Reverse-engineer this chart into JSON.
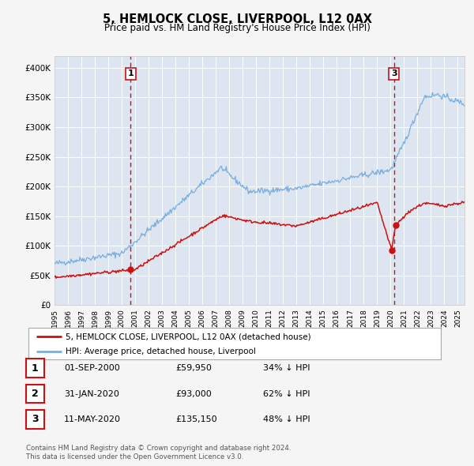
{
  "title": "5, HEMLOCK CLOSE, LIVERPOOL, L12 0AX",
  "subtitle": "Price paid vs. HM Land Registry's House Price Index (HPI)",
  "bg_color": "#f5f5f5",
  "plot_bg_color": "#dde6f0",
  "red_line_label": "5, HEMLOCK CLOSE, LIVERPOOL, L12 0AX (detached house)",
  "blue_line_label": "HPI: Average price, detached house, Liverpool",
  "transactions": [
    {
      "num": 1,
      "date": "01-SEP-2000",
      "price": "£59,950",
      "hpi_pct": "34% ↓ HPI",
      "year": 2000.67,
      "value": 59950
    },
    {
      "num": 2,
      "date": "31-JAN-2020",
      "price": "£93,000",
      "hpi_pct": "62% ↓ HPI",
      "year": 2020.08,
      "value": 93000
    },
    {
      "num": 3,
      "date": "11-MAY-2020",
      "price": "£135,150",
      "hpi_pct": "48% ↓ HPI",
      "year": 2020.37,
      "value": 135150
    }
  ],
  "vline1_x": 2000.67,
  "vline2_x": 2020.25,
  "footnote1": "Contains HM Land Registry data © Crown copyright and database right 2024.",
  "footnote2": "This data is licensed under the Open Government Licence v3.0.",
  "ylim": [
    0,
    420000
  ],
  "xlim": [
    1995.0,
    2025.5
  ],
  "yticks": [
    0,
    50000,
    100000,
    150000,
    200000,
    250000,
    300000,
    350000,
    400000
  ],
  "ytick_labels": [
    "£0",
    "£50K",
    "£100K",
    "£150K",
    "£200K",
    "£250K",
    "£300K",
    "£350K",
    "£400K"
  ],
  "xticks": [
    1995,
    1996,
    1997,
    1998,
    1999,
    2000,
    2001,
    2002,
    2003,
    2004,
    2005,
    2006,
    2007,
    2008,
    2009,
    2010,
    2011,
    2012,
    2013,
    2014,
    2015,
    2016,
    2017,
    2018,
    2019,
    2020,
    2021,
    2022,
    2023,
    2024,
    2025
  ],
  "red_color": "#cc1111",
  "blue_color": "#7aadde",
  "vline_color": "#cc1111",
  "grid_color": "#ffffff",
  "legend_border_color": "#aaaaaa",
  "box_border_color": "#cc1111"
}
